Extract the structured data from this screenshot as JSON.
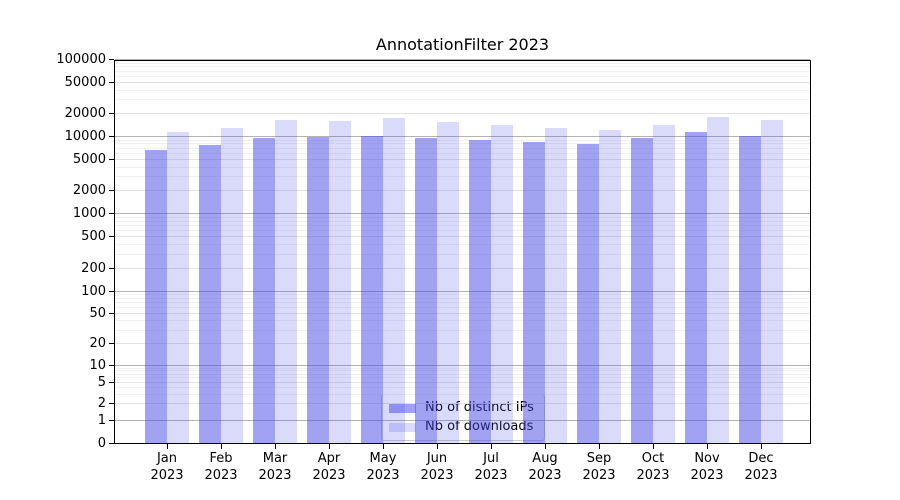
{
  "chart_data": {
    "type": "bar",
    "title": "AnnotationFilter 2023",
    "categories": [
      "Jan",
      "Feb",
      "Mar",
      "Apr",
      "May",
      "Jun",
      "Jul",
      "Aug",
      "Sep",
      "Oct",
      "Nov",
      "Dec"
    ],
    "year": "2023",
    "series": [
      {
        "name": "Nb of distinct IPs",
        "color": "rgba(70,70,230,0.5)",
        "values": [
          6500,
          7600,
          9300,
          9700,
          10100,
          9400,
          8900,
          8400,
          7900,
          9300,
          11300,
          10000
        ]
      },
      {
        "name": "Nb of downloads",
        "color": "rgba(70,70,230,0.2)",
        "values": [
          11200,
          12900,
          16100,
          15700,
          16900,
          15200,
          13900,
          12700,
          12000,
          13900,
          17700,
          16100
        ]
      }
    ],
    "yscale": "symlog",
    "ylim": [
      0,
      100000
    ],
    "ytick_labels": [
      "0",
      "1",
      "2",
      "5",
      "10",
      "20",
      "50",
      "100",
      "200",
      "500",
      "1000",
      "2000",
      "5000",
      "10000",
      "20000",
      "50000",
      "100000"
    ],
    "grid": true,
    "legend_position": "lower center"
  },
  "colors": {
    "spine": "#000000",
    "grid_decade": "#b3b3b3",
    "grid_labeled": "#e3e3e3",
    "grid_minor": "#f0f0f0",
    "legend_border": "#cccccc"
  }
}
